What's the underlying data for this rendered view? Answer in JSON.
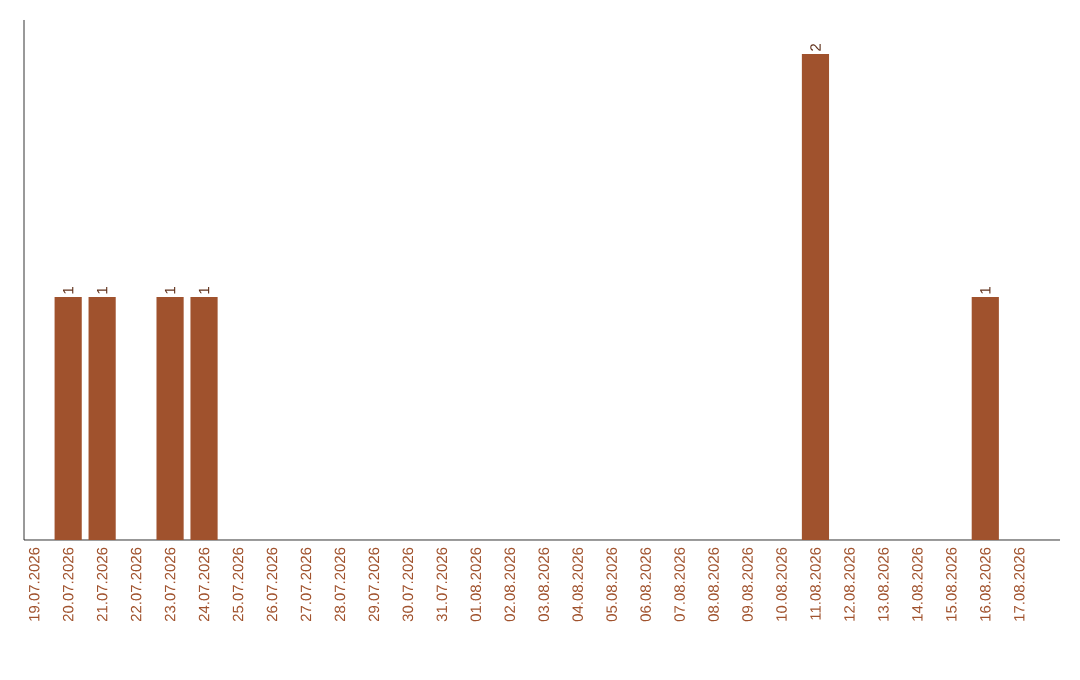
{
  "chart_data": {
    "type": "bar",
    "categories": [
      "19.07.2026",
      "20.07.2026",
      "21.07.2026",
      "22.07.2026",
      "23.07.2026",
      "24.07.2026",
      "25.07.2026",
      "26.07.2026",
      "27.07.2026",
      "28.07.2026",
      "29.07.2026",
      "30.07.2026",
      "31.07.2026",
      "01.08.2026",
      "02.08.2026",
      "03.08.2026",
      "04.08.2026",
      "05.08.2026",
      "06.08.2026",
      "07.08.2026",
      "08.08.2026",
      "09.08.2026",
      "10.08.2026",
      "11.08.2026",
      "12.08.2026",
      "13.08.2026",
      "14.08.2026",
      "15.08.2026",
      "16.08.2026",
      "17.08.2026"
    ],
    "values": [
      0,
      1,
      1,
      0,
      1,
      1,
      0,
      0,
      0,
      0,
      0,
      0,
      0,
      0,
      0,
      0,
      0,
      0,
      0,
      0,
      0,
      0,
      0,
      2,
      0,
      0,
      0,
      0,
      1,
      0
    ],
    "value_labels": [
      null,
      "1",
      "1",
      null,
      "1",
      "1",
      null,
      null,
      null,
      null,
      null,
      null,
      null,
      null,
      null,
      null,
      null,
      null,
      null,
      null,
      null,
      null,
      null,
      "2",
      null,
      null,
      null,
      null,
      "1",
      null
    ],
    "color": "#a0522d",
    "tick_labels": "x",
    "grid": false
  }
}
